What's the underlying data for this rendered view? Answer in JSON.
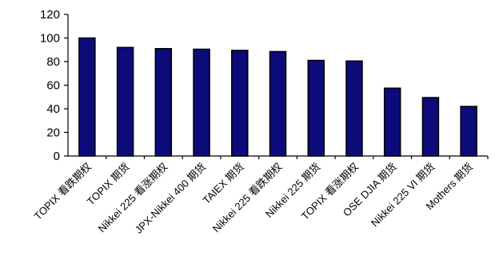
{
  "chart_data": {
    "type": "bar",
    "title": "",
    "xlabel": "",
    "ylabel": "",
    "ylim": [
      0,
      120
    ],
    "yticks": [
      0,
      20,
      40,
      60,
      80,
      100,
      120
    ],
    "grid": false,
    "legend": "none",
    "bar_color": "#0b0b7a",
    "categories": [
      "TOPIX 看跌期权",
      "TOPIX 期货",
      "Nikkei 225 看涨期权",
      "JPX-Nikkei 400 期货",
      "TAIEX 期货",
      "Nikkei 225 看跌期权",
      "Nikkei 225 期货",
      "TOPIX 看涨期权",
      "OSE DJIA 期货",
      "Nikkei 225 VI 期货",
      "Mothers 期货"
    ],
    "values": [
      100,
      92,
      91,
      90.5,
      89.5,
      88.5,
      81,
      80.5,
      57.5,
      49.5,
      42
    ]
  }
}
